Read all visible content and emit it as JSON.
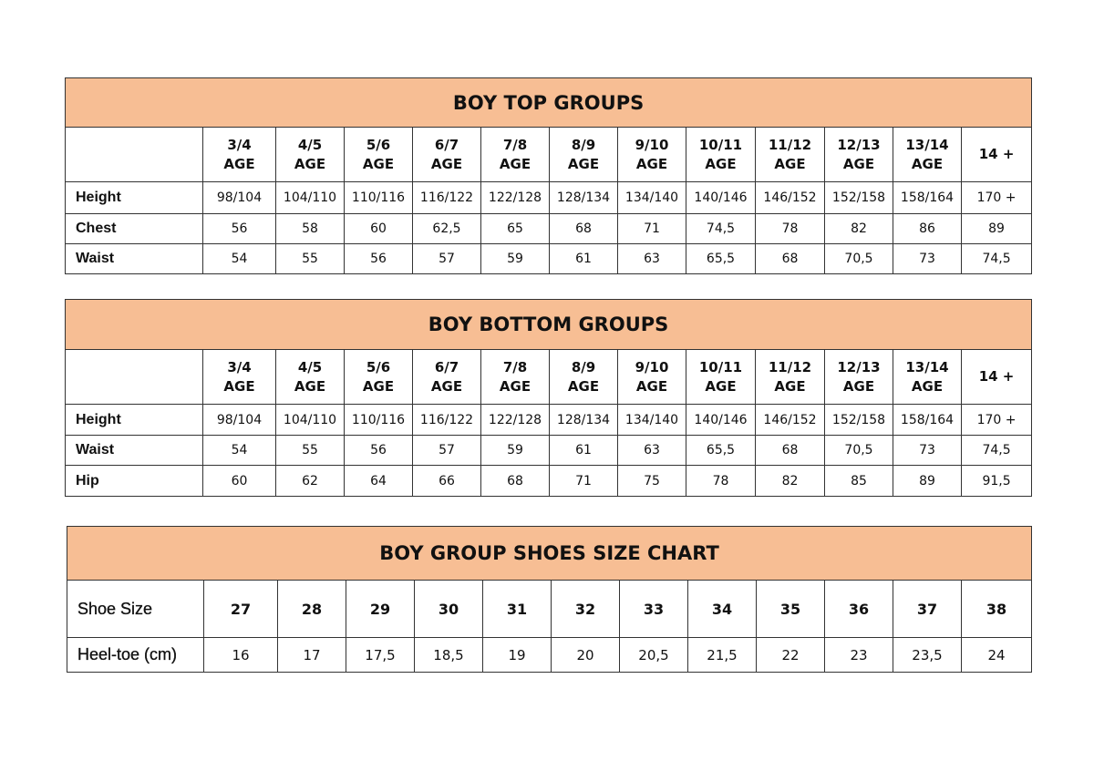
{
  "top": {
    "title": "BOY TOP GROUPS",
    "columns": [
      [
        "3/4",
        "AGE"
      ],
      [
        "4/5",
        "AGE"
      ],
      [
        "5/6",
        "AGE"
      ],
      [
        "6/7",
        "AGE"
      ],
      [
        "7/8",
        "AGE"
      ],
      [
        "8/9",
        "AGE"
      ],
      [
        "9/10",
        "AGE"
      ],
      [
        "10/11",
        "AGE"
      ],
      [
        "11/12",
        "AGE"
      ],
      [
        "12/13",
        "AGE"
      ],
      [
        "13/14",
        "AGE"
      ],
      [
        "14 +",
        ""
      ]
    ],
    "rows": [
      {
        "label": "Height",
        "values": [
          "98/104",
          "104/110",
          "110/116",
          "116/122",
          "122/128",
          "128/134",
          "134/140",
          "140/146",
          "146/152",
          "152/158",
          "158/164",
          "170 +"
        ]
      },
      {
        "label": "Chest",
        "values": [
          "56",
          "58",
          "60",
          "62,5",
          "65",
          "68",
          "71",
          "74,5",
          "78",
          "82",
          "86",
          "89"
        ]
      },
      {
        "label": "Waist",
        "values": [
          "54",
          "55",
          "56",
          "57",
          "59",
          "61",
          "63",
          "65,5",
          "68",
          "70,5",
          "73",
          "74,5"
        ]
      }
    ]
  },
  "bottom": {
    "title": "BOY BOTTOM GROUPS",
    "columns": [
      [
        "3/4",
        "AGE"
      ],
      [
        "4/5",
        "AGE"
      ],
      [
        "5/6",
        "AGE"
      ],
      [
        "6/7",
        "AGE"
      ],
      [
        "7/8",
        "AGE"
      ],
      [
        "8/9",
        "AGE"
      ],
      [
        "9/10",
        "AGE"
      ],
      [
        "10/11",
        "AGE"
      ],
      [
        "11/12",
        "AGE"
      ],
      [
        "12/13",
        "AGE"
      ],
      [
        "13/14",
        "AGE"
      ],
      [
        "14 +",
        ""
      ]
    ],
    "rows": [
      {
        "label": "Height",
        "values": [
          "98/104",
          "104/110",
          "110/116",
          "116/122",
          "122/128",
          "128/134",
          "134/140",
          "140/146",
          "146/152",
          "152/158",
          "158/164",
          "170 +"
        ]
      },
      {
        "label": "Waist",
        "values": [
          "54",
          "55",
          "56",
          "57",
          "59",
          "61",
          "63",
          "65,5",
          "68",
          "70,5",
          "73",
          "74,5"
        ]
      },
      {
        "label": "Hip",
        "values": [
          "60",
          "62",
          "64",
          "66",
          "68",
          "71",
          "75",
          "78",
          "82",
          "85",
          "89",
          "91,5"
        ]
      }
    ]
  },
  "shoes": {
    "title": "BOY GROUP SHOES SIZE CHART",
    "rows": [
      {
        "label": "Shoe Size",
        "values": [
          "27",
          "28",
          "29",
          "30",
          "31",
          "32",
          "33",
          "34",
          "35",
          "36",
          "37",
          "38"
        ]
      },
      {
        "label": "Heel-toe (cm)",
        "values": [
          "16",
          "17",
          "17,5",
          "18,5",
          "19",
          "20",
          "20,5",
          "21,5",
          "22",
          "23",
          "23,5",
          "24"
        ]
      }
    ]
  },
  "colors": {
    "header_band": "#f7be94",
    "border": "#333333"
  }
}
